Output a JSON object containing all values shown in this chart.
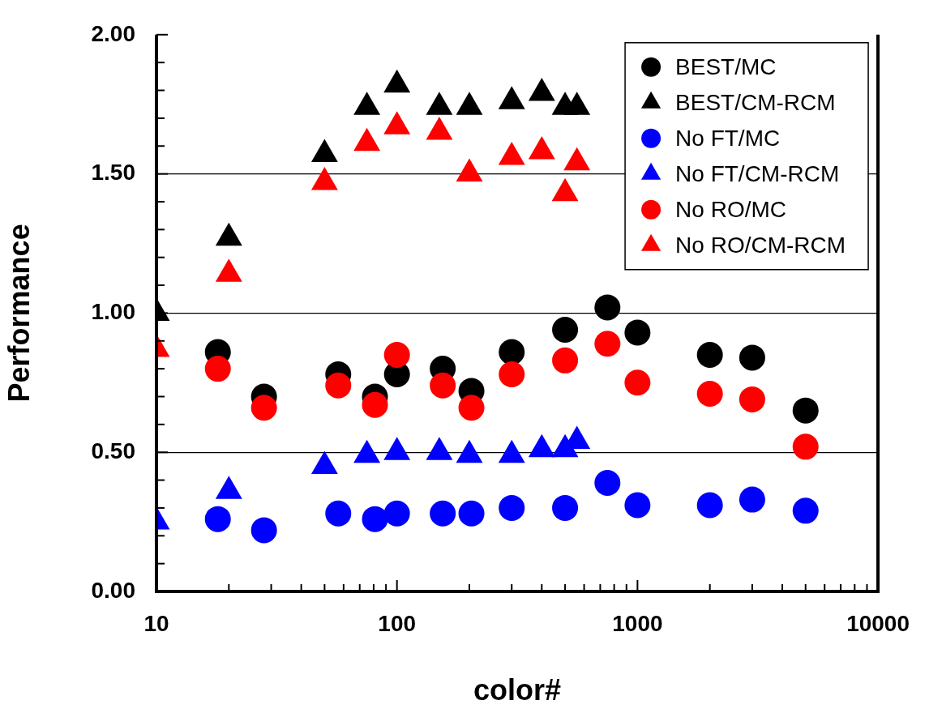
{
  "chart_data": {
    "type": "scatter",
    "xlabel": "color#",
    "ylabel": "Performance",
    "log": "x",
    "grid": "y",
    "legend": "top right",
    "xlim": [
      10,
      10000
    ],
    "ylim": [
      0,
      2
    ],
    "xticks": [
      10,
      {
        "value": 20,
        "label": null
      },
      {
        "value": 30,
        "label": null
      },
      {
        "value": 40,
        "label": null
      },
      {
        "value": 50,
        "label": null
      },
      {
        "value": 60,
        "label": null
      },
      {
        "value": 70,
        "label": null
      },
      {
        "value": 80,
        "label": null
      },
      {
        "value": 90,
        "label": null
      },
      100,
      {
        "value": 200,
        "label": null
      },
      {
        "value": 300,
        "label": null
      },
      {
        "value": 400,
        "label": null
      },
      {
        "value": 500,
        "label": null
      },
      {
        "value": 600,
        "label": null
      },
      {
        "value": 700,
        "label": null
      },
      {
        "value": 800,
        "label": null
      },
      {
        "value": 900,
        "label": null
      },
      1000,
      {
        "value": 2000,
        "label": null
      },
      {
        "value": 3000,
        "label": null
      },
      {
        "value": 4000,
        "label": null
      },
      {
        "value": 5000,
        "label": null
      },
      {
        "value": 6000,
        "label": null
      },
      {
        "value": 7000,
        "label": null
      },
      {
        "value": 8000,
        "label": null
      },
      {
        "value": 9000,
        "label": null
      },
      10000
    ],
    "yticks": [
      {
        "value": 0,
        "label": "0.00"
      },
      {
        "value": 0.1,
        "label": null
      },
      {
        "value": 0.2,
        "label": null
      },
      {
        "value": 0.3,
        "label": null
      },
      {
        "value": 0.4,
        "label": null
      },
      {
        "value": 0.5,
        "label": "0.50"
      },
      {
        "value": 0.6,
        "label": null
      },
      {
        "value": 0.7,
        "label": null
      },
      {
        "value": 0.8,
        "label": null
      },
      {
        "value": 0.9,
        "label": null
      },
      {
        "value": 1,
        "label": "1.00"
      },
      {
        "value": 1.1,
        "label": null
      },
      {
        "value": 1.2,
        "label": null
      },
      {
        "value": 1.3,
        "label": null
      },
      {
        "value": 1.4,
        "label": null
      },
      {
        "value": 1.5,
        "label": "1.50"
      },
      {
        "value": 1.6,
        "label": null
      },
      {
        "value": 1.7,
        "label": null
      },
      {
        "value": 1.8,
        "label": null
      },
      {
        "value": 1.9,
        "label": null
      },
      {
        "value": 2,
        "label": "2.00"
      }
    ],
    "series": [
      {
        "name": "BEST/MC",
        "color": "#000000",
        "marker": "circle",
        "x": [
          18,
          28,
          57,
          81,
          100,
          155,
          204,
          300,
          500,
          750,
          1000,
          2000,
          3000,
          5000
        ],
        "values": [
          0.86,
          0.7,
          0.78,
          0.7,
          0.78,
          0.8,
          0.72,
          0.86,
          0.94,
          1.02,
          0.93,
          0.85,
          0.84,
          0.65
        ]
      },
      {
        "name": "BEST/CM-RCM",
        "color": "#000000",
        "marker": "triangle",
        "x": [
          10,
          20,
          50,
          75,
          100,
          150,
          200,
          300,
          400,
          500,
          560
        ],
        "values": [
          1.0,
          1.27,
          1.57,
          1.74,
          1.82,
          1.74,
          1.74,
          1.76,
          1.79,
          1.74,
          1.74
        ]
      },
      {
        "name": "No FT/MC",
        "color": "#0000ff",
        "marker": "circle",
        "x": [
          18,
          28,
          57,
          81,
          100,
          155,
          204,
          300,
          500,
          750,
          1000,
          2000,
          3000,
          5000
        ],
        "values": [
          0.26,
          0.22,
          0.28,
          0.26,
          0.28,
          0.28,
          0.28,
          0.3,
          0.3,
          0.39,
          0.31,
          0.31,
          0.33,
          0.29
        ]
      },
      {
        "name": "No FT/CM-RCM",
        "color": "#0000ff",
        "marker": "triangle",
        "x": [
          10,
          20,
          50,
          75,
          100,
          150,
          200,
          300,
          400,
          500,
          560
        ],
        "values": [
          0.25,
          0.36,
          0.45,
          0.49,
          0.5,
          0.5,
          0.49,
          0.49,
          0.51,
          0.51,
          0.54
        ]
      },
      {
        "name": "No RO/MC",
        "color": "#ff0000",
        "marker": "circle",
        "x": [
          18,
          28,
          57,
          81,
          100,
          155,
          204,
          300,
          500,
          750,
          1000,
          2000,
          3000,
          5000
        ],
        "values": [
          0.8,
          0.66,
          0.74,
          0.67,
          0.85,
          0.74,
          0.66,
          0.78,
          0.83,
          0.89,
          0.75,
          0.71,
          0.69,
          0.52
        ]
      },
      {
        "name": "No RO/CM-RCM",
        "color": "#ff0000",
        "marker": "triangle",
        "x": [
          10,
          20,
          50,
          75,
          100,
          150,
          200,
          300,
          400,
          500,
          560
        ],
        "values": [
          0.87,
          1.14,
          1.47,
          1.61,
          1.67,
          1.65,
          1.5,
          1.56,
          1.58,
          1.43,
          1.54
        ]
      }
    ]
  }
}
